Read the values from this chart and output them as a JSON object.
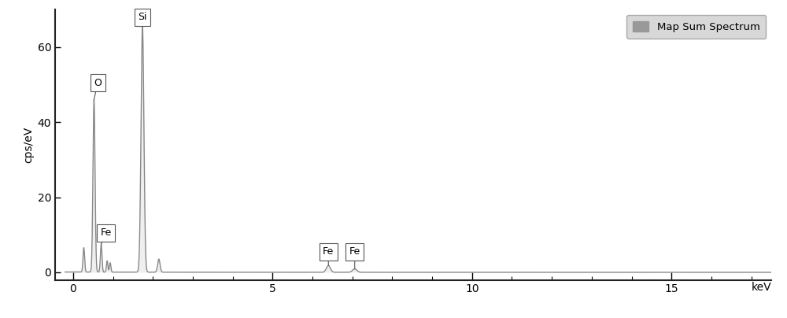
{
  "xlabel": "keV",
  "ylabel": "cps/eV",
  "xlim": [
    -0.45,
    17.5
  ],
  "ylim": [
    -2.0,
    70
  ],
  "yticks": [
    0,
    20,
    40,
    60
  ],
  "xticks": [
    0,
    5,
    10,
    15
  ],
  "line_color": "#888888",
  "line_width": 1.0,
  "legend_label": "Map Sum Spectrum",
  "legend_color": "#999999",
  "background_color": "#ffffff",
  "plot_bg_color": "#f8f8f8",
  "spine_color": "#222222",
  "annotation_box_style": "square,pad=0.35",
  "annotation_edge_color": "#555555",
  "annotation_font_size": 9
}
